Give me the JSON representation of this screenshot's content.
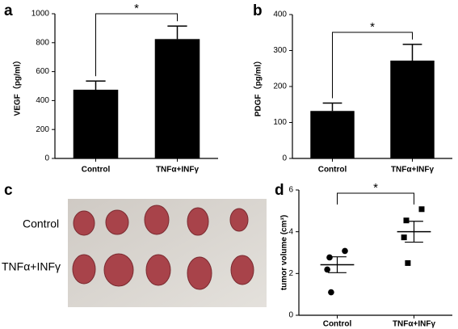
{
  "chart_data": [
    {
      "type": "bar",
      "panel_label": "a",
      "y_label": "VEGF（pg/ml）",
      "categories": [
        "Control",
        "TNFα+INFγ"
      ],
      "values": [
        475,
        825
      ],
      "errors": [
        60,
        90
      ],
      "color": "#000000",
      "ylim": [
        0,
        1000
      ],
      "yticks": [
        0,
        200,
        400,
        600,
        800,
        1000
      ],
      "annotation": "*"
    },
    {
      "type": "bar",
      "panel_label": "b",
      "y_label": "PDGF（pg/ml）",
      "categories": [
        "Control",
        "TNFα+INFγ"
      ],
      "values": [
        132,
        272
      ],
      "errors": [
        22,
        45
      ],
      "color": "#000000",
      "ylim": [
        0,
        400
      ],
      "yticks": [
        0,
        100,
        200,
        300,
        400
      ],
      "annotation": "*"
    },
    {
      "type": "dotplot",
      "panel_label": "d",
      "y_label": "tumor volume (cm³)",
      "categories": [
        "Control",
        "TNFα+INFγ"
      ],
      "points": [
        [
          3.08,
          2.77,
          2.19,
          1.1
        ],
        [
          5.08,
          4.54,
          3.73,
          2.5
        ]
      ],
      "means": [
        2.42,
        4.0
      ],
      "errors": [
        0.38,
        0.5
      ],
      "markers": [
        "circle",
        "square"
      ],
      "color": "#000000",
      "ylim": [
        0,
        6
      ],
      "yticks": [
        0,
        2,
        4,
        6
      ],
      "annotation": "*"
    }
  ],
  "photo": {
    "panel_label": "c",
    "row_labels": [
      "Control",
      "TNFα+INFγ"
    ]
  }
}
